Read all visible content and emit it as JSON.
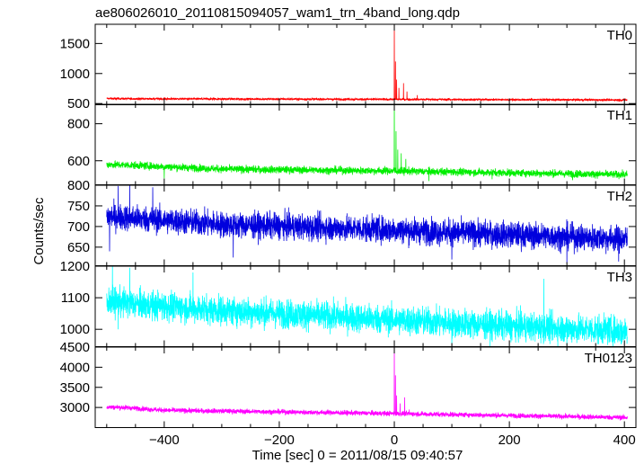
{
  "chart_data": {
    "type": "line",
    "title": "ae806026010_20110815094057_wam1_trn_4band_long.qdp",
    "xlabel": "Time [sec] 0 = 2011/08/15 09:40:57",
    "ylabel": "Counts/sec",
    "xlim": [
      -520,
      420
    ],
    "xticks": [
      -400,
      -200,
      0,
      200,
      400
    ],
    "panels": [
      {
        "name": "TH0",
        "color": "#ff0000",
        "ylim": [
          480,
          1820
        ],
        "yticks": [
          500,
          1000,
          1500
        ],
        "baseline": [
          [
            -500,
            585
          ],
          [
            -460,
            580
          ],
          [
            0,
            570
          ],
          [
            400,
            560
          ]
        ],
        "noise": 12,
        "spikes": [
          [
            0,
            1820
          ],
          [
            2,
            1200
          ],
          [
            4,
            900
          ],
          [
            8,
            760
          ],
          [
            16,
            840
          ],
          [
            22,
            700
          ],
          [
            40,
            640
          ]
        ],
        "min_dips": []
      },
      {
        "name": "TH1",
        "color": "#00ee00",
        "ylim": [
          470,
          905
        ],
        "yticks": [
          600,
          800
        ],
        "baseline": [
          [
            -500,
            580
          ],
          [
            -450,
            575
          ],
          [
            -300,
            555
          ],
          [
            0,
            545
          ],
          [
            200,
            535
          ],
          [
            400,
            525
          ]
        ],
        "noise": 14,
        "spikes": [
          [
            0,
            900
          ],
          [
            3,
            760
          ],
          [
            6,
            660
          ],
          [
            12,
            640
          ],
          [
            20,
            610
          ]
        ],
        "min_dips": [
          [
            -400,
            505
          ],
          [
            60,
            490
          ],
          [
            170,
            500
          ],
          [
            310,
            495
          ]
        ]
      },
      {
        "name": "TH2",
        "color": "#0000dd",
        "ylim": [
          605,
          800
        ],
        "yticks": [
          650,
          700,
          750,
          800
        ],
        "baseline": [
          [
            -500,
            725
          ],
          [
            -450,
            720
          ],
          [
            -300,
            705
          ],
          [
            0,
            692
          ],
          [
            200,
            680
          ],
          [
            400,
            670
          ]
        ],
        "noise": 22,
        "spikes": [
          [
            -460,
            800
          ],
          [
            -420,
            795
          ],
          [
            -480,
            798
          ]
        ],
        "min_dips": [
          [
            -495,
            640
          ],
          [
            -280,
            625
          ],
          [
            100,
            620
          ],
          [
            300,
            612
          ],
          [
            390,
            615
          ]
        ]
      },
      {
        "name": "TH3",
        "color": "#00ffff",
        "ylim": [
          945,
          1200
        ],
        "yticks": [
          1000,
          1100,
          1200
        ],
        "baseline": [
          [
            -500,
            1090
          ],
          [
            -450,
            1080
          ],
          [
            -300,
            1060
          ],
          [
            0,
            1030
          ],
          [
            200,
            1010
          ],
          [
            400,
            995
          ]
        ],
        "noise": 32,
        "spikes": [
          [
            -490,
            1200
          ],
          [
            -460,
            1195
          ],
          [
            -350,
            1180
          ],
          [
            260,
            1160
          ]
        ],
        "min_dips": [
          [
            -480,
            1000
          ],
          [
            100,
            955
          ],
          [
            300,
            950
          ],
          [
            395,
            955
          ]
        ]
      },
      {
        "name": "TH0123",
        "color": "#ff00ff",
        "ylim": [
          2500,
          4500
        ],
        "yticks": [
          3000,
          3500,
          4000,
          4500
        ],
        "baseline": [
          [
            -500,
            3010
          ],
          [
            -470,
            3000
          ],
          [
            -400,
            2930
          ],
          [
            0,
            2850
          ],
          [
            200,
            2800
          ],
          [
            400,
            2750
          ]
        ],
        "noise": 42,
        "spikes": [
          [
            0,
            4500
          ],
          [
            2,
            3800
          ],
          [
            4,
            3300
          ],
          [
            10,
            3100
          ],
          [
            18,
            3250
          ],
          [
            26,
            2950
          ]
        ],
        "min_dips": []
      }
    ]
  }
}
